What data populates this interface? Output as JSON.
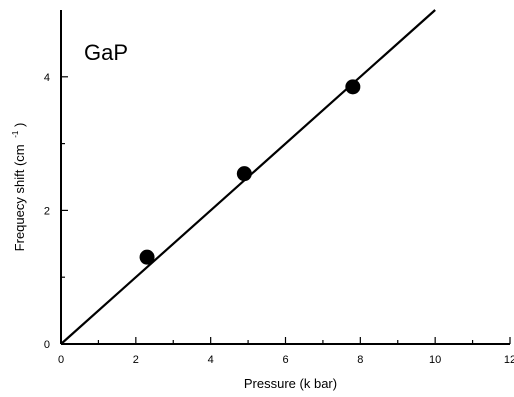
{
  "chart_data": {
    "type": "scatter",
    "title": "",
    "annotation": "GaP",
    "xlabel": "Pressure (k bar)",
    "ylabel": "Frequecy shift (cm",
    "ylabel_superscript": "-1",
    "ylabel_suffix": ")",
    "xlim": [
      0,
      12
    ],
    "ylim": [
      0,
      5
    ],
    "x_ticks": [
      0,
      2,
      4,
      6,
      8,
      10,
      12
    ],
    "x_tick_labels": [
      "0",
      "2",
      "4",
      "6",
      "8",
      "10",
      "12"
    ],
    "y_ticks": [
      0,
      2,
      4
    ],
    "y_tick_labels": [
      "0",
      "2",
      "4"
    ],
    "grid": false,
    "series": [
      {
        "points": [
          {
            "x": 2.3,
            "y": 1.3
          },
          {
            "x": 4.9,
            "y": 2.55
          },
          {
            "x": 7.8,
            "y": 3.85
          }
        ]
      }
    ],
    "fit_line": {
      "x": [
        0,
        10
      ],
      "y": [
        0,
        5.0
      ]
    },
    "colors": {
      "marker": "#000000",
      "line": "#000000"
    }
  }
}
